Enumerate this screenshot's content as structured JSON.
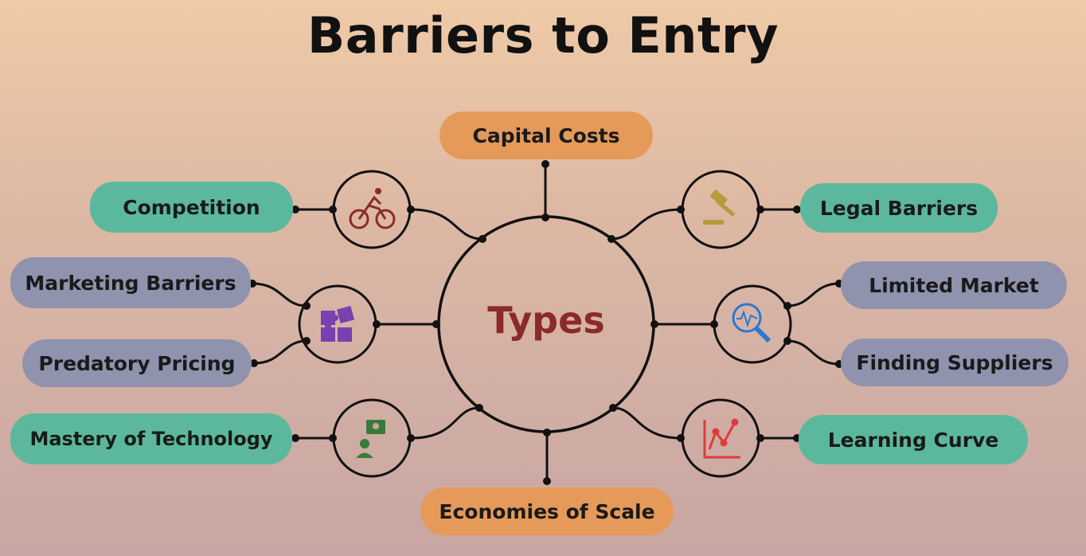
{
  "title": "Barriers to Entry",
  "center": "Types",
  "nodes": {
    "capital_costs": "Capital Costs",
    "economies_of_scale": "Economies of Scale",
    "competition": "Competition",
    "legal_barriers": "Legal Barriers",
    "marketing_barriers": "Marketing Barriers",
    "predatory_pricing": "Predatory Pricing",
    "limited_market": "Limited Market",
    "finding_suppliers": "Finding Suppliers",
    "mastery_of_technology": "Mastery of Technology",
    "learning_curve": "Learning Curve"
  },
  "icons": {
    "competition": "cyclist-icon",
    "legal": "gavel-icon",
    "marketing": "puzzle-icon",
    "market": "magnifier-chart-icon",
    "technology": "person-idea-icon",
    "learning": "line-chart-icon"
  },
  "colors": {
    "teal": "#5cb89c",
    "orange": "#e59a5a",
    "slate": "#8f93ad",
    "center_text": "#8b2a2a"
  }
}
